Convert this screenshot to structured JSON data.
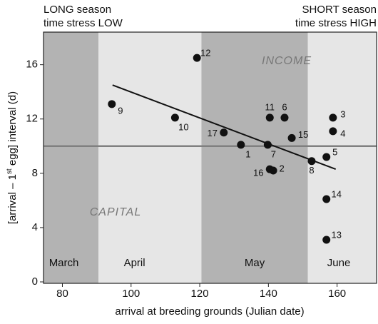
{
  "chart_data": {
    "type": "scatter",
    "header_left": [
      "LONG season",
      "time stress LOW"
    ],
    "header_right": [
      "SHORT season",
      "time stress HIGH"
    ],
    "xlabel": "arrival at breeding grounds (Julian date)",
    "ylabel": [
      "[arrival – 1",
      "st",
      " egg] interval (d)"
    ],
    "xlim": [
      74.5,
      171.5
    ],
    "ylim": [
      0,
      18.4
    ],
    "xticks": [
      80,
      100,
      120,
      140,
      160
    ],
    "yticks": [
      0,
      4,
      8,
      12,
      16
    ],
    "regions": [
      {
        "label": "March",
        "from": 74.5,
        "to": 90.5,
        "color": "#b3b3b3"
      },
      {
        "label": "April",
        "from": 90.5,
        "to": 120.5,
        "color": "#e6e6e6"
      },
      {
        "label": "May",
        "from": 120.5,
        "to": 151.5,
        "color": "#b3b3b3"
      },
      {
        "label": "June",
        "from": 151.5,
        "to": 171.5,
        "color": "#e6e6e6"
      }
    ],
    "annotations": [
      "INCOME",
      "CAPITAL"
    ],
    "hline": 10,
    "trend": {
      "x": [
        94.6,
        159.6
      ],
      "y": [
        14.5,
        8.3
      ]
    },
    "color": "#111111",
    "point_labels": [
      "9",
      "12",
      "10",
      "17",
      "1",
      "11",
      "6",
      "7",
      "15",
      "16",
      "2",
      "8",
      "5",
      "3",
      "4",
      "14",
      "13"
    ],
    "x": [
      94.4,
      119.2,
      112.8,
      127.0,
      132.0,
      140.4,
      144.7,
      139.8,
      146.8,
      140.4,
      141.4,
      152.6,
      156.9,
      158.8,
      158.8,
      156.9,
      156.9
    ],
    "values": [
      13.1,
      16.5,
      12.1,
      11.0,
      10.1,
      12.1,
      12.1,
      10.1,
      10.6,
      8.3,
      8.2,
      8.9,
      9.2,
      12.1,
      11.1,
      6.1,
      3.1
    ]
  }
}
